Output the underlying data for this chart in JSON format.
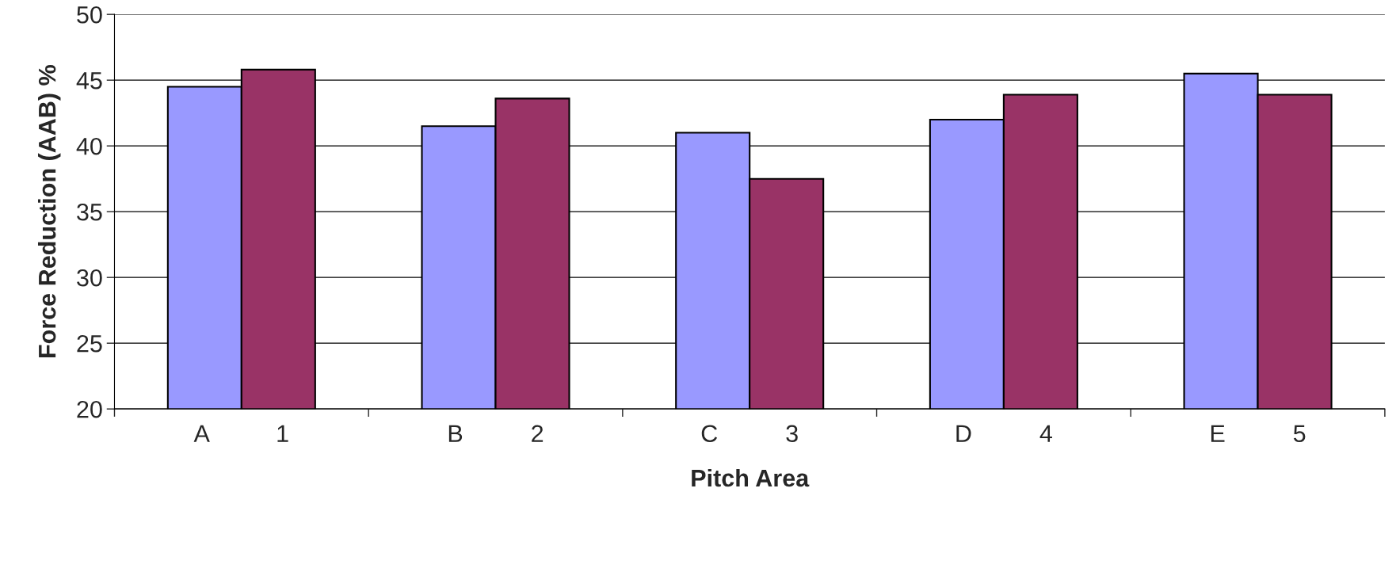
{
  "chart_data": {
    "type": "bar",
    "xlabel": "Pitch Area",
    "ylabel": "Force Reduction (AAB) %",
    "categories": [
      "A          1",
      "B          2",
      "C          3",
      "D          4",
      "E          5"
    ],
    "series": [
      {
        "color": "#9999ff",
        "values": [
          44.5,
          41.5,
          41.0,
          42.0,
          45.5
        ]
      },
      {
        "color": "#993366",
        "values": [
          45.8,
          43.6,
          37.5,
          43.9,
          43.9
        ]
      }
    ],
    "ylim": [
      20,
      50
    ],
    "yticks": [
      20,
      25,
      30,
      35,
      40,
      45,
      50
    ],
    "grid": "y",
    "legend": false
  }
}
